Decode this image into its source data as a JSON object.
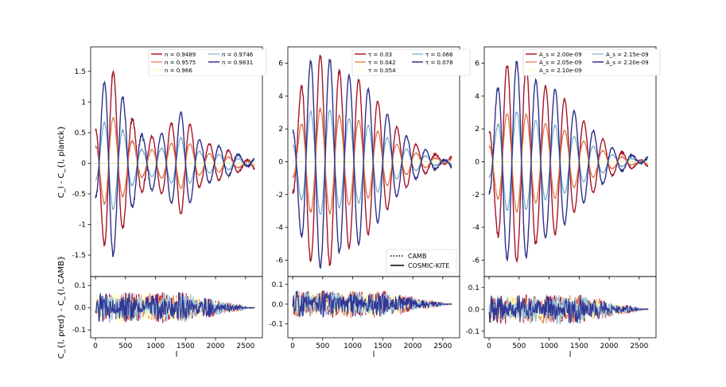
{
  "figure": {
    "x_label": "l",
    "top_y_label": "C_l - C_{l, planck}",
    "bottom_y_label": "C_{l, pred} - C_{l, CAMB}",
    "style_legend": [
      {
        "label": "CAMB",
        "style": "dotted"
      },
      {
        "label": "COSMIC-KITE",
        "style": "solid"
      }
    ]
  },
  "chart_data": [
    {
      "type": "line",
      "panel": "n",
      "x": [
        2,
        2650
      ],
      "xlim": [
        -80,
        2780
      ],
      "xticks": [
        0,
        500,
        1000,
        1500,
        2000,
        2500
      ],
      "ylim_top": [
        -1.85,
        1.9
      ],
      "yticks_top": [
        -1.5,
        -1.0,
        -0.5,
        0.0,
        0.5,
        1.0,
        1.5
      ],
      "ylim_bottom": [
        -0.135,
        0.14
      ],
      "yticks_bottom": [
        -0.1,
        0.0,
        0.1
      ],
      "legend_cols": 2,
      "series": [
        {
          "name": "n = 0.9489",
          "color": "#b2182b",
          "amplitude": -1.0
        },
        {
          "name": "n = 0.9575",
          "color": "#ef8a62",
          "amplitude": -0.5
        },
        {
          "name": "n = 0.966",
          "color": "#ffffbf",
          "amplitude": 0.0
        },
        {
          "name": "n = 0.9746",
          "color": "#91bfdb",
          "amplitude": 0.5
        },
        {
          "name": "n = 0.9831",
          "color": "#313695",
          "amplitude": 1.0
        }
      ],
      "peaks": [
        1.7,
        0.85,
        0.4,
        0.5,
        0.85,
        0.35,
        0.28,
        0.12
      ],
      "residual_scale": 0.1
    },
    {
      "type": "line",
      "panel": "tau",
      "x": [
        2,
        2650
      ],
      "xlim": [
        -80,
        2780
      ],
      "xticks": [
        0,
        500,
        1000,
        1500,
        2000,
        2500
      ],
      "ylim_top": [
        -7.0,
        7.0
      ],
      "yticks_top": [
        -6,
        -4,
        -2,
        0,
        2,
        4,
        6
      ],
      "ylim_bottom": [
        -0.17,
        0.14
      ],
      "yticks_bottom": [
        -0.1,
        0.0,
        0.1
      ],
      "legend_cols": 2,
      "series": [
        {
          "name": "τ = 0.03",
          "color": "#b2182b",
          "amplitude": 1.0
        },
        {
          "name": "τ = 0.042",
          "color": "#ef8a62",
          "amplitude": 0.5
        },
        {
          "name": "τ = 0.054",
          "color": "#ffffbf",
          "amplitude": 0.0
        },
        {
          "name": "τ = 0.066",
          "color": "#91bfdb",
          "amplitude": -0.5
        },
        {
          "name": "τ = 0.078",
          "color": "#313695",
          "amplitude": -1.0
        }
      ],
      "peaks": [
        5.9,
        6.6,
        5.4,
        5.0,
        3.6,
        2.0,
        1.0,
        0.35
      ],
      "residual_scale": 0.1
    },
    {
      "type": "line",
      "panel": "As",
      "x": [
        2,
        2650
      ],
      "xlim": [
        -80,
        2780
      ],
      "xticks": [
        0,
        500,
        1000,
        1500,
        2000,
        2500
      ],
      "ylim_top": [
        -7.0,
        7.0
      ],
      "yticks_top": [
        -6,
        -4,
        -2,
        0,
        2,
        4,
        6
      ],
      "ylim_bottom": [
        -0.13,
        0.15
      ],
      "yticks_bottom": [
        -0.1,
        0.0,
        0.1
      ],
      "legend_cols": 2,
      "series": [
        {
          "name": "A_s = 2.00e-09",
          "color": "#b2182b",
          "amplitude": -1.0
        },
        {
          "name": "A_s = 2.05e-09",
          "color": "#ef8a62",
          "amplitude": -0.5
        },
        {
          "name": "A_s = 2.10e-09",
          "color": "#ffffbf",
          "amplitude": 0.0
        },
        {
          "name": "A_s = 2.15e-09",
          "color": "#91bfdb",
          "amplitude": 0.5
        },
        {
          "name": "A_s = 2.20e-09",
          "color": "#313695",
          "amplitude": 1.0
        }
      ],
      "peaks": [
        5.8,
        6.2,
        4.8,
        4.4,
        3.0,
        1.8,
        0.8,
        0.3
      ],
      "residual_scale": 0.1
    }
  ]
}
